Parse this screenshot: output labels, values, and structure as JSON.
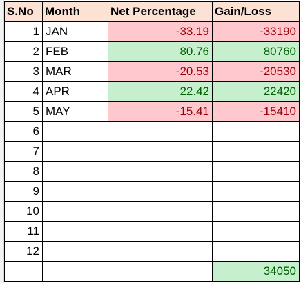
{
  "headers": {
    "sno": "S.No",
    "month": "Month",
    "net": "Net Percentage",
    "gain": "Gain/Loss"
  },
  "rows": [
    {
      "sno": "1",
      "month": "JAN",
      "net": "-33.19",
      "gain": "-33190",
      "status": "negative"
    },
    {
      "sno": "2",
      "month": "FEB",
      "net": "80.76",
      "gain": "80760",
      "status": "positive"
    },
    {
      "sno": "3",
      "month": "MAR",
      "net": "-20.53",
      "gain": "-20530",
      "status": "negative"
    },
    {
      "sno": "4",
      "month": "APR",
      "net": "22.42",
      "gain": "22420",
      "status": "positive"
    },
    {
      "sno": "5",
      "month": "MAY",
      "net": "-15.41",
      "gain": "-15410",
      "status": "negative"
    },
    {
      "sno": "6",
      "month": "",
      "net": "",
      "gain": ""
    },
    {
      "sno": "7",
      "month": "",
      "net": "",
      "gain": ""
    },
    {
      "sno": "8",
      "month": "",
      "net": "",
      "gain": ""
    },
    {
      "sno": "9",
      "month": "",
      "net": "",
      "gain": ""
    },
    {
      "sno": "10",
      "month": "",
      "net": "",
      "gain": ""
    },
    {
      "sno": "11",
      "month": "",
      "net": "",
      "gain": ""
    },
    {
      "sno": "12",
      "month": "",
      "net": "",
      "gain": ""
    }
  ],
  "total": {
    "gain": "34050",
    "status": "positive"
  },
  "colors": {
    "header_fill": "#fbe2d5",
    "negative_fill": "#ffc7ce",
    "negative_text": "#9c0006",
    "positive_fill": "#c6efce",
    "positive_text": "#006100"
  }
}
